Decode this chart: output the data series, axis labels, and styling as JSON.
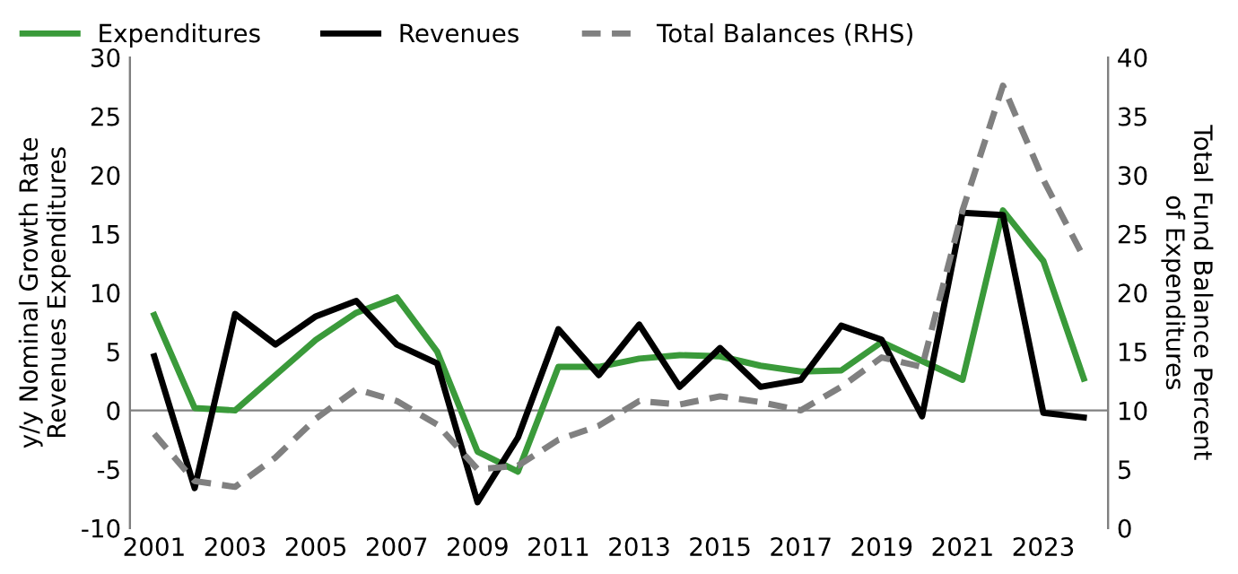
{
  "chart_data": {
    "type": "line",
    "ylabel": "y/y Nominal Growth Rate\nRevenues Expenditures",
    "y2label": "Total Fund Balance Percent\nof Expenditures",
    "x": [
      2001,
      2002,
      2003,
      2004,
      2005,
      2006,
      2007,
      2008,
      2009,
      2010,
      2011,
      2012,
      2013,
      2014,
      2015,
      2016,
      2017,
      2018,
      2019,
      2020,
      2021,
      2022,
      2023,
      2024
    ],
    "series": [
      {
        "name": "Expenditures",
        "color": "#3a9a3a",
        "line_style": "solid",
        "values": [
          8.1,
          0.2,
          0,
          3,
          6,
          8.3,
          9.6,
          5,
          -3.5,
          -5.2,
          3.7,
          3.7,
          4.4,
          4.7,
          4.6,
          3.8,
          3.3,
          3.4,
          5.8,
          4.2,
          2.6,
          17,
          12.7,
          2.7
        ]
      },
      {
        "name": "Revenues",
        "color": "#000000",
        "line_style": "solid",
        "values": [
          4.6,
          -6.6,
          8.2,
          5.6,
          8,
          9.3,
          5.6,
          4,
          -7.8,
          -2.3,
          6.9,
          3,
          7.3,
          2,
          5.3,
          2,
          2.6,
          7.2,
          6,
          -0.5,
          16.8,
          16.6,
          -0.2,
          -0.6
        ]
      },
      {
        "name": "Total Balances (RHS)",
        "color": "#808080",
        "line_style": "dashed",
        "axis": "y2",
        "values": [
          8,
          4,
          3.5,
          6,
          9.3,
          11.8,
          10.8,
          8.8,
          5,
          5.3,
          7.5,
          8.7,
          10.8,
          10.5,
          11.2,
          10.7,
          10,
          12,
          14.5,
          13.7,
          27,
          37.6,
          29.6,
          23
        ]
      }
    ],
    "xlim": [
      2000.4,
      2024.6
    ],
    "xticks": [
      2001,
      2003,
      2005,
      2007,
      2009,
      2011,
      2013,
      2015,
      2017,
      2019,
      2021,
      2023
    ],
    "ylim": [
      -10,
      30
    ],
    "yticks": [
      -10,
      -5,
      0,
      5,
      10,
      15,
      20,
      25,
      30
    ],
    "y2lim": [
      0,
      40
    ],
    "y2ticks": [
      0,
      5,
      10,
      15,
      20,
      25,
      30,
      35,
      40
    ],
    "ref_lines": [
      {
        "axis": "y",
        "value": 0,
        "color": "#808080"
      }
    ],
    "grid": false,
    "legend": "top left",
    "marker": "none"
  }
}
